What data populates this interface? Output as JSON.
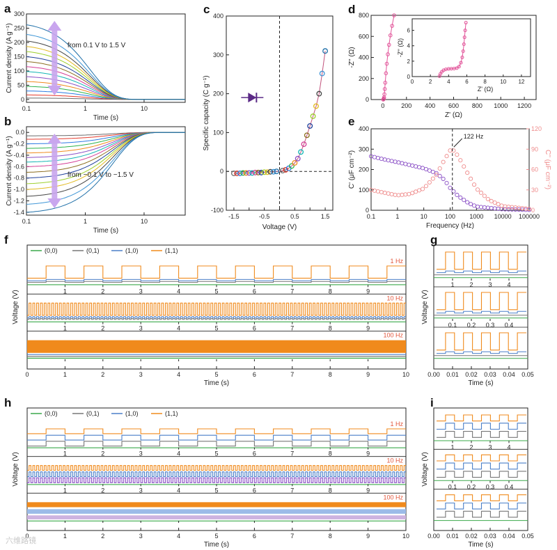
{
  "watermark": "六维路镜",
  "colors": {
    "accent_purple": "#c9a6ee",
    "diode": "#5b2a86",
    "pink": "#e2559a",
    "real_part": "#8a4fc6",
    "imag_part": "#ef8c8c",
    "orange": "#f08a1c",
    "blue": "#4a7fc8",
    "gray": "#777777",
    "green": "#3aa84a"
  },
  "chart_data": [
    {
      "id": "a",
      "panel_letter": "a",
      "type": "line",
      "xlabel": "Time (s)",
      "ylabel": "Current density (A g⁻¹)",
      "x_scale": "log",
      "xlim": [
        0.1,
        50
      ],
      "ylim": [
        -10,
        300
      ],
      "yticks": [
        0,
        50,
        100,
        150,
        200,
        250,
        300
      ],
      "xticks": [
        0.1,
        1,
        10
      ],
      "xtick_labels": [
        "0.1",
        "1",
        "10"
      ],
      "annotation": "from 0.1 V to 1.5 V",
      "series_count": 15,
      "initial_values": [
        5,
        16,
        30,
        46,
        63,
        80,
        98,
        115,
        133,
        150,
        168,
        186,
        205,
        228,
        262
      ],
      "decay_time_s": 1.2
    },
    {
      "id": "b",
      "panel_letter": "b",
      "type": "line",
      "xlabel": "Time (s)",
      "ylabel": "Current density (A g⁻¹)",
      "x_scale": "log",
      "xlim": [
        0.1,
        50
      ],
      "ylim": [
        -1.45,
        0.1
      ],
      "yticks": [
        -1.4,
        -1.2,
        -1.0,
        -0.8,
        -0.6,
        -0.4,
        -0.2,
        0.0
      ],
      "ytick_labels": [
        "-1.4",
        "-1.2",
        "-1.0",
        "-0.8",
        "-0.6",
        "-0.4",
        "-0.2",
        "0.0"
      ],
      "xticks": [
        0.1,
        1,
        10
      ],
      "xtick_labels": [
        "0.1",
        "1",
        "10"
      ],
      "annotation": "from −0.1 V to −1.5 V",
      "series_count": 15,
      "initial_values": [
        -0.06,
        -0.12,
        -0.2,
        -0.28,
        -0.36,
        -0.44,
        -0.52,
        -0.6,
        -0.7,
        -0.8,
        -0.9,
        -1.0,
        -1.12,
        -1.26,
        -1.4
      ],
      "decay_time_s": 3
    },
    {
      "id": "c",
      "panel_letter": "c",
      "type": "scatter",
      "xlabel": "Voltage (V)",
      "ylabel": "Specific capacity (C g⁻¹)",
      "xlim": [
        -1.75,
        1.75
      ],
      "ylim": [
        -100,
        400
      ],
      "xticks": [
        -1.5,
        -1.0,
        -0.5,
        0.0,
        0.5,
        1.0,
        1.5
      ],
      "xtick_labels": [
        "-1.5",
        "-1.0",
        "-0.5",
        "0.0",
        "0.5",
        "1.0",
        "1.5"
      ],
      "yticks": [
        -100,
        0,
        100,
        200,
        300,
        400
      ],
      "x": [
        -1.5,
        -1.4,
        -1.3,
        -1.2,
        -1.1,
        -1.0,
        -0.9,
        -0.8,
        -0.7,
        -0.6,
        -0.5,
        -0.4,
        -0.3,
        -0.2,
        -0.1,
        0.1,
        0.2,
        0.3,
        0.4,
        0.5,
        0.6,
        0.7,
        0.8,
        0.9,
        1.0,
        1.1,
        1.2,
        1.3,
        1.4,
        1.5
      ],
      "y": [
        -5,
        -5,
        -5,
        -4,
        -4,
        -4,
        -4,
        -3,
        -3,
        -3,
        -2,
        -2,
        -1,
        -1,
        0,
        2,
        4,
        8,
        14,
        22,
        33,
        50,
        70,
        93,
        117,
        142,
        168,
        200,
        252,
        310
      ],
      "reference_lines": [
        "x = 0",
        "y = 0"
      ]
    },
    {
      "id": "d",
      "panel_letter": "d",
      "type": "line",
      "xlabel": "Z' (Ω)",
      "ylabel": "-Z'' (Ω)",
      "xlim": [
        -100,
        1300
      ],
      "ylim": [
        0,
        800
      ],
      "xticks": [
        0,
        200,
        400,
        600,
        800,
        1000,
        1200
      ],
      "yticks": [
        0,
        200,
        400,
        600,
        800
      ],
      "x": [
        3,
        5,
        8,
        10,
        13,
        16,
        20,
        26,
        33,
        42,
        52,
        64,
        78,
        95
      ],
      "y": [
        0,
        2,
        8,
        20,
        50,
        100,
        160,
        250,
        340,
        430,
        520,
        610,
        700,
        800
      ],
      "inset": {
        "xlabel": "Z' (Ω)",
        "ylabel": "-Z'' (Ω)",
        "xlim": [
          0,
          13
        ],
        "ylim": [
          0,
          7.5
        ],
        "xticks": [
          0,
          2,
          4,
          6,
          8,
          10,
          12
        ],
        "yticks": [
          0,
          2,
          4,
          6
        ],
        "x": [
          3.0,
          3.1,
          3.25,
          3.45,
          3.7,
          4.0,
          4.3,
          4.6,
          4.9,
          5.15,
          5.35,
          5.5,
          5.6,
          5.68,
          5.75,
          5.82,
          5.9
        ],
        "y": [
          0.05,
          0.35,
          0.62,
          0.82,
          0.94,
          1.0,
          1.02,
          1.04,
          1.1,
          1.3,
          1.8,
          2.5,
          3.3,
          4.2,
          5.1,
          6.0,
          7.0
        ]
      }
    },
    {
      "id": "e",
      "panel_letter": "e",
      "type": "scatter",
      "xlabel": "Frequency (Hz)",
      "ylabel": "C' (μF cm⁻²)",
      "ylabel_right": "C'' (μF cm⁻²)",
      "x_scale": "log",
      "xlim": [
        0.1,
        100000
      ],
      "xticks": [
        0.1,
        1,
        10,
        100,
        1000,
        10000,
        100000
      ],
      "xtick_labels": [
        "0.1",
        "1",
        "10",
        "100",
        "1000",
        "10000",
        "100000"
      ],
      "ylim": [
        0,
        400
      ],
      "yticks": [
        0,
        100,
        200,
        300,
        400
      ],
      "ylim_right": [
        0,
        120
      ],
      "yticks_right": [
        0,
        30,
        60,
        90,
        120
      ],
      "annotation": "122 Hz",
      "marker_frequency_hz": 122,
      "series": [
        {
          "name": "C'",
          "axis": "left",
          "color": "#8a4fc6",
          "x": [
            0.1,
            0.3,
            1,
            3,
            10,
            30,
            60,
            100,
            200,
            500,
            1000,
            10000,
            100000
          ],
          "y": [
            265,
            250,
            236,
            222,
            206,
            182,
            150,
            110,
            70,
            35,
            18,
            5,
            2
          ]
        },
        {
          "name": "C''",
          "axis": "right",
          "color": "#ef8c8c",
          "x": [
            0.1,
            0.3,
            1,
            3,
            10,
            30,
            60,
            100,
            122,
            200,
            500,
            1000,
            3000,
            10000,
            100000
          ],
          "y": [
            30,
            26,
            22,
            24,
            32,
            52,
            74,
            88,
            90,
            80,
            52,
            32,
            15,
            6,
            2
          ]
        }
      ]
    },
    {
      "id": "f",
      "panel_letter": "f",
      "type": "line",
      "xlabel": "Time (s)",
      "ylabel": "Voltage (V)",
      "xlim": [
        0,
        10
      ],
      "xticks": [
        0,
        1,
        2,
        3,
        4,
        5,
        6,
        7,
        8,
        9,
        10
      ],
      "legend": [
        "(0,0)",
        "(0,1)",
        "(1,0)",
        "(1,1)"
      ],
      "legend_colors": [
        "#3aa84a",
        "#777777",
        "#4a7fc8",
        "#f08a1c"
      ],
      "rows": [
        {
          "label": "1 Hz",
          "frequency_hz": 1,
          "scale": 1
        },
        {
          "label": "10 Hz",
          "frequency_hz": 10,
          "scale": 1
        },
        {
          "label": "100 Hz",
          "frequency_hz": 100,
          "scale": 1
        }
      ],
      "row_tick_labels": [
        "1",
        "2",
        "3",
        "4",
        "5",
        "6",
        "7",
        "8",
        "9"
      ]
    },
    {
      "id": "g",
      "panel_letter": "g",
      "type": "line",
      "xlabel": "Time (s)",
      "ylabel": "Voltage (V)",
      "xlim": [
        0,
        0.05
      ],
      "xticks": [
        0,
        0.01,
        0.02,
        0.03,
        0.04,
        0.05
      ],
      "xtick_labels": [
        "0.00",
        "0.01",
        "0.02",
        "0.03",
        "0.04",
        "0.05"
      ],
      "rows": [
        {
          "tick_labels": [
            "1",
            "2",
            "3",
            "4"
          ],
          "cycles": 5
        },
        {
          "tick_labels": [
            "0.1",
            "0.2",
            "0.3",
            "0.4"
          ],
          "cycles": 5
        },
        {
          "tick_labels": [],
          "cycles": 5
        }
      ]
    },
    {
      "id": "h",
      "panel_letter": "h",
      "type": "line",
      "xlabel": "Time (s)",
      "ylabel": "Voltage (V)",
      "xlim": [
        0,
        10
      ],
      "xticks": [
        0,
        1,
        2,
        3,
        4,
        5,
        6,
        7,
        8,
        9,
        10
      ],
      "legend": [
        "(0,0)",
        "(0,1)",
        "(1,0)",
        "(1,1)"
      ],
      "legend_colors": [
        "#3aa84a",
        "#777777",
        "#4a7fc8",
        "#f08a1c"
      ],
      "rows": [
        {
          "label": "1 Hz",
          "frequency_hz": 1
        },
        {
          "label": "10 Hz",
          "frequency_hz": 10
        },
        {
          "label": "100 Hz",
          "frequency_hz": 100
        }
      ],
      "row_tick_labels": [
        "1",
        "2",
        "3",
        "4",
        "5",
        "6",
        "7",
        "8",
        "9"
      ]
    },
    {
      "id": "i",
      "panel_letter": "i",
      "type": "line",
      "xlabel": "Time (s)",
      "ylabel": "Voltage (V)",
      "xlim": [
        0,
        0.05
      ],
      "xticks": [
        0,
        0.01,
        0.02,
        0.03,
        0.04,
        0.05
      ],
      "xtick_labels": [
        "0.00",
        "0.01",
        "0.02",
        "0.03",
        "0.04",
        "0.05"
      ],
      "rows": [
        {
          "tick_labels": [
            "1",
            "2",
            "3",
            "4"
          ],
          "cycles": 5
        },
        {
          "tick_labels": [
            "0.1",
            "0.2",
            "0.3",
            "0.4"
          ],
          "cycles": 5
        },
        {
          "tick_labels": [],
          "cycles": 5
        }
      ]
    }
  ]
}
